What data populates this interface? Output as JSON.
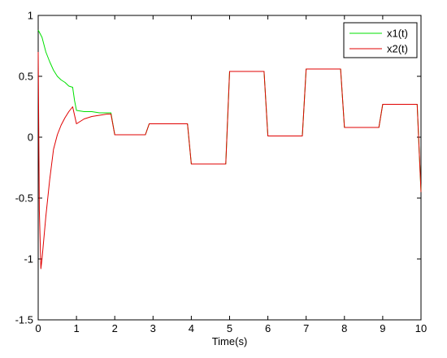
{
  "chart_data": {
    "type": "line",
    "title": "",
    "xlabel": "Time(s)",
    "ylabel": "",
    "xlim": [
      0,
      10
    ],
    "ylim": [
      -1.5,
      1
    ],
    "xticks": [
      0,
      1,
      2,
      3,
      4,
      5,
      6,
      7,
      8,
      9,
      10
    ],
    "yticks": [
      -1.5,
      -1,
      -0.5,
      0,
      0.5,
      1
    ],
    "xtick_labels": [
      "0",
      "1",
      "2",
      "3",
      "4",
      "5",
      "6",
      "7",
      "8",
      "9",
      "10"
    ],
    "ytick_labels": [
      "-1.5",
      "-1",
      "-0.5",
      "0",
      "0.5",
      "1"
    ],
    "grid": false,
    "legend_position": "top-right",
    "series": [
      {
        "name": "x1(t)",
        "color": "#00e000",
        "x": [
          0,
          0.1,
          0.2,
          0.3,
          0.4,
          0.5,
          0.6,
          0.7,
          0.8,
          0.9,
          0.95,
          1.0,
          1.2,
          1.4,
          1.6,
          1.8,
          1.9,
          2.0,
          2.1,
          2.8,
          2.9,
          3.0,
          3.9,
          4.0,
          4.9,
          5.0,
          5.9,
          6.0,
          6.9,
          7.0,
          7.9,
          8.0,
          8.9,
          9.0,
          9.9,
          10.0
        ],
        "y": [
          0.88,
          0.82,
          0.7,
          0.62,
          0.55,
          0.5,
          0.47,
          0.45,
          0.42,
          0.41,
          0.3,
          0.22,
          0.21,
          0.21,
          0.2,
          0.2,
          0.2,
          0.02,
          0.02,
          0.02,
          0.11,
          0.11,
          0.11,
          -0.22,
          -0.22,
          0.54,
          0.54,
          0.01,
          0.01,
          0.56,
          0.56,
          0.08,
          0.08,
          0.27,
          0.27,
          -0.45
        ]
      },
      {
        "name": "x2(t)",
        "color": "#e00000",
        "x": [
          0,
          0.03,
          0.07,
          0.1,
          0.2,
          0.3,
          0.4,
          0.5,
          0.6,
          0.7,
          0.8,
          0.9,
          1.0,
          1.2,
          1.4,
          1.6,
          1.8,
          1.9,
          2.0,
          2.1,
          2.8,
          2.9,
          3.0,
          3.9,
          4.0,
          4.9,
          5.0,
          5.9,
          6.0,
          6.9,
          7.0,
          7.9,
          8.0,
          8.9,
          9.0,
          9.9,
          10.0
        ],
        "y": [
          0.7,
          -0.6,
          -1.08,
          -1.0,
          -0.65,
          -0.35,
          -0.1,
          0.02,
          0.1,
          0.16,
          0.21,
          0.25,
          0.11,
          0.15,
          0.17,
          0.18,
          0.19,
          0.19,
          0.02,
          0.02,
          0.02,
          0.11,
          0.11,
          0.11,
          -0.22,
          -0.22,
          0.54,
          0.54,
          0.01,
          0.01,
          0.56,
          0.56,
          0.08,
          0.08,
          0.27,
          0.27,
          -0.45
        ]
      }
    ]
  }
}
